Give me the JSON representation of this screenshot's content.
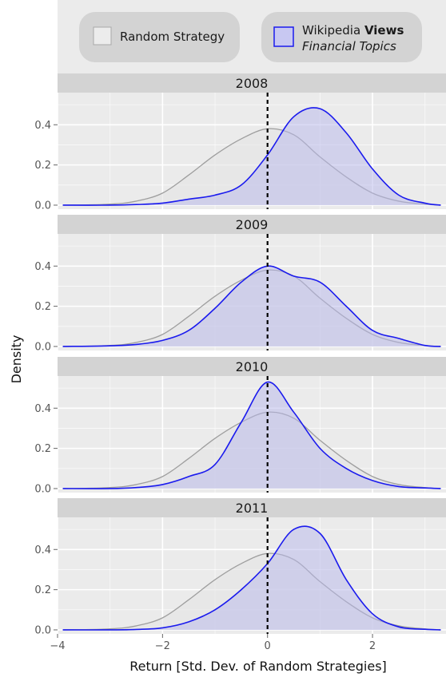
{
  "chart_data": {
    "type": "area",
    "xlabel": "Return [Std. Dev. of Random Strategies]",
    "ylabel": "Density",
    "xlim": [
      -4.0,
      3.4
    ],
    "ylim": [
      -0.02,
      0.56
    ],
    "x_ticks": [
      -4,
      -2,
      0,
      2
    ],
    "x_tick_labels": [
      "−4",
      "−2",
      "0",
      "2"
    ],
    "y_ticks": [
      0.0,
      0.2,
      0.4
    ],
    "y_tick_labels": [
      "0.0",
      "0.2",
      "0.4"
    ],
    "reference_line_x": 0,
    "legend": {
      "placement": "top",
      "items": [
        {
          "key": "random",
          "label": "Random Strategy"
        },
        {
          "key": "wiki",
          "label_line1_regular": "Wikipedia ",
          "label_line1_bold": "Views",
          "label_line2": "Financial Topics"
        }
      ]
    },
    "colors": {
      "random_line": "#9e9e9e",
      "random_fill": "#e4e4e4",
      "wiki_line": "#1a1aee",
      "wiki_fill": "#b8b8ec",
      "panel_bg": "#ebebeb",
      "strip_bg": "#d3d3d3",
      "grid": "#ffffff",
      "zero_line": "#000000"
    },
    "x": [
      -3.9,
      -3.0,
      -2.5,
      -2.0,
      -1.5,
      -1.0,
      -0.5,
      0.0,
      0.5,
      1.0,
      1.5,
      2.0,
      2.5,
      3.0,
      3.3
    ],
    "panels": [
      {
        "title": "2008",
        "series": [
          {
            "name": "Random Strategy",
            "key": "random",
            "values": [
              0.0,
              0.005,
              0.02,
              0.06,
              0.15,
              0.25,
              0.33,
              0.38,
              0.35,
              0.24,
              0.14,
              0.06,
              0.02,
              0.005,
              0.0
            ]
          },
          {
            "name": "Wikipedia Views Financial Topics",
            "key": "wiki",
            "values": [
              0.0,
              0.0,
              0.003,
              0.01,
              0.03,
              0.05,
              0.1,
              0.25,
              0.44,
              0.48,
              0.36,
              0.18,
              0.05,
              0.01,
              0.0
            ]
          }
        ]
      },
      {
        "title": "2009",
        "series": [
          {
            "name": "Random Strategy",
            "key": "random",
            "values": [
              0.0,
              0.005,
              0.02,
              0.06,
              0.15,
              0.25,
              0.33,
              0.38,
              0.35,
              0.24,
              0.14,
              0.06,
              0.02,
              0.005,
              0.0
            ]
          },
          {
            "name": "Wikipedia Views Financial Topics",
            "key": "wiki",
            "values": [
              0.0,
              0.003,
              0.01,
              0.03,
              0.08,
              0.19,
              0.32,
              0.4,
              0.35,
              0.32,
              0.2,
              0.08,
              0.04,
              0.005,
              0.0
            ]
          }
        ]
      },
      {
        "title": "2010",
        "series": [
          {
            "name": "Random Strategy",
            "key": "random",
            "values": [
              0.0,
              0.005,
              0.02,
              0.06,
              0.15,
              0.25,
              0.33,
              0.38,
              0.35,
              0.24,
              0.14,
              0.06,
              0.02,
              0.005,
              0.0
            ]
          },
          {
            "name": "Wikipedia Views Financial Topics",
            "key": "wiki",
            "values": [
              0.0,
              0.0,
              0.005,
              0.02,
              0.06,
              0.12,
              0.33,
              0.53,
              0.38,
              0.2,
              0.1,
              0.04,
              0.01,
              0.003,
              0.0
            ]
          }
        ]
      },
      {
        "title": "2011",
        "series": [
          {
            "name": "Random Strategy",
            "key": "random",
            "values": [
              0.0,
              0.005,
              0.02,
              0.06,
              0.15,
              0.25,
              0.33,
              0.38,
              0.35,
              0.24,
              0.14,
              0.06,
              0.02,
              0.005,
              0.0
            ]
          },
          {
            "name": "Wikipedia Views Financial Topics",
            "key": "wiki",
            "values": [
              0.0,
              0.0,
              0.002,
              0.01,
              0.04,
              0.1,
              0.2,
              0.33,
              0.5,
              0.48,
              0.25,
              0.08,
              0.015,
              0.003,
              0.0
            ]
          }
        ]
      }
    ]
  }
}
